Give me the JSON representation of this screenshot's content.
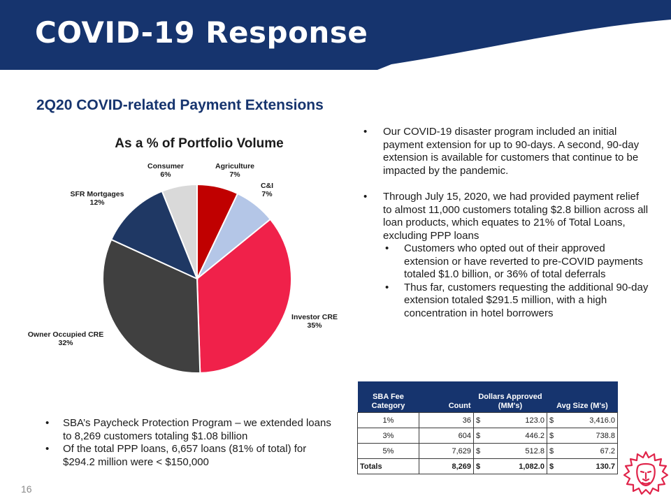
{
  "slide": {
    "title": "COVID-19 Response",
    "subtitle": "2Q20 COVID-related Payment Extensions",
    "page_number": "16"
  },
  "colors": {
    "navy": "#16346e",
    "agriculture": "#c00000",
    "cni": "#b4c6e7",
    "investor_cre": "#f0214a",
    "owner_occupied_cre": "#404040",
    "sfr_mortgages": "#1f3864",
    "consumer": "#d9d9d9",
    "logo": "#e0244a"
  },
  "chart_data": {
    "type": "pie",
    "title": "As a % of Portfolio Volume",
    "slices": [
      {
        "label": "Agriculture",
        "value": 7,
        "value_label": "7%"
      },
      {
        "label": "C&I",
        "value": 7,
        "value_label": "7%"
      },
      {
        "label": "Investor CRE",
        "value": 35,
        "value_label": "35%"
      },
      {
        "label": "Owner Occupied CRE",
        "value": 32,
        "value_label": "32%"
      },
      {
        "label": "SFR Mortgages",
        "value": 12,
        "value_label": "12%"
      },
      {
        "label": "Consumer",
        "value": 6,
        "value_label": "6%"
      }
    ]
  },
  "bullets": {
    "b1": "Our COVID-19 disaster program included an initial payment extension for up to 90-days.  A second, 90-day extension is available for customers that continue to be impacted by the pandemic.",
    "b2": "Through  July 15, 2020, we had provided payment relief to almost 11,000 customers totaling $2.8 billion across all loan products, which equates to 21% of Total Loans, excluding PPP loans",
    "b2_sub1": "Customers who opted out of their approved extension or have reverted to pre-COVID payments totaled $1.0 billion, or 36% of total deferrals",
    "b2_sub2": "Thus far, customers requesting the additional 90-day extension totaled $291.5 million, with a high concentration in hotel borrowers"
  },
  "ppp": {
    "b1": "SBA’s Paycheck Protection Program – we extended loans to 8,269 customers totaling $1.08 billion",
    "b2": "Of the total PPP loans, 6,657 loans (81% of total) for $294.2 million were < $150,000"
  },
  "sba_table": {
    "headers": {
      "category": "SBA Fee Category",
      "count": "Count",
      "dollars": "Dollars Approved (MM's)",
      "avg": "Avg Size (M's)"
    },
    "currency": "$",
    "rows": [
      {
        "category": "1%",
        "count": "36",
        "dollars": "123.0",
        "avg": "3,416.0"
      },
      {
        "category": "3%",
        "count": "604",
        "dollars": "446.2",
        "avg": "738.8"
      },
      {
        "category": "5%",
        "count": "7,629",
        "dollars": "512.8",
        "avg": "67.2"
      }
    ],
    "totals": {
      "category": "Totals",
      "count": "8,269",
      "dollars": "1,082.0",
      "avg": "130.7"
    }
  },
  "icons": {
    "logo": "lion-head-icon"
  }
}
